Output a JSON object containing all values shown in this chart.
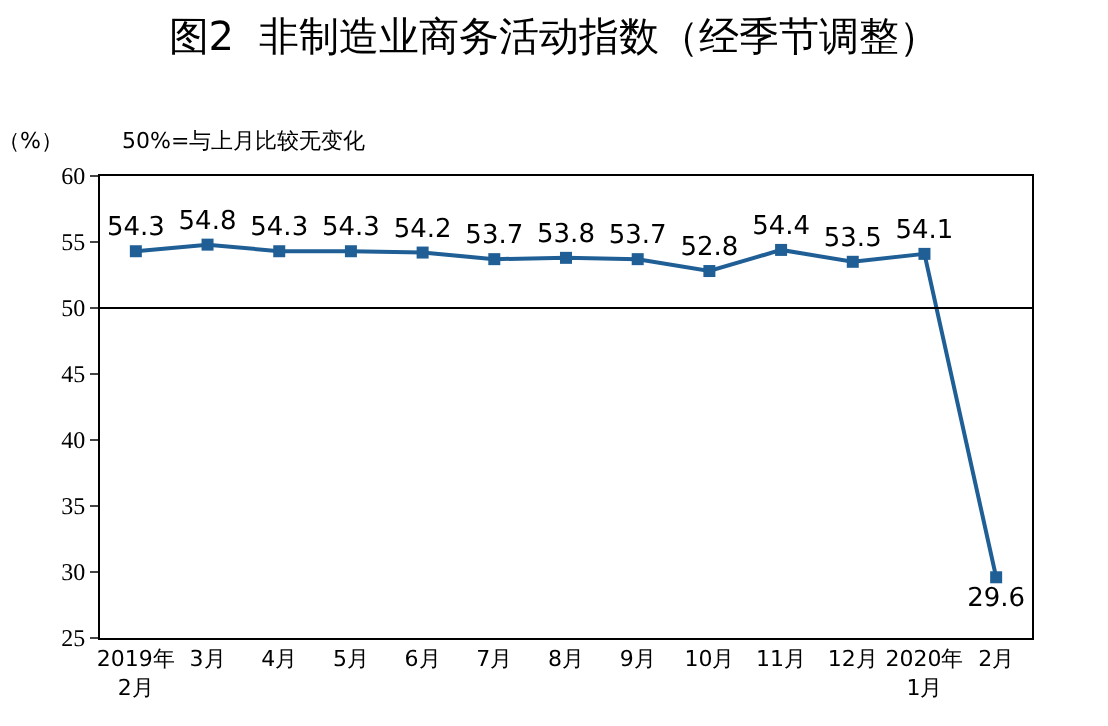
{
  "chart_data": {
    "type": "line",
    "title": "图2  非制造业商务活动指数（经季节调整）",
    "ylabel": "（%）",
    "annotations": [
      "50%=与上月比较无变化"
    ],
    "categories": [
      "2019年\n2月",
      "3月",
      "4月",
      "5月",
      "6月",
      "7月",
      "8月",
      "9月",
      "10月",
      "11月",
      "12月",
      "2020年\n1月",
      "2月"
    ],
    "series": [
      {
        "color": "#1f5f96",
        "values": [
          54.3,
          54.8,
          54.3,
          54.3,
          54.2,
          53.7,
          53.8,
          53.7,
          52.8,
          54.4,
          53.5,
          54.1,
          29.6
        ]
      }
    ],
    "ylim": [
      25,
      60
    ],
    "yticks": [
      25,
      30,
      35,
      40,
      45,
      50,
      55,
      60
    ],
    "ref_lines": [
      {
        "axis": "y",
        "value": 50,
        "color": "#000000"
      }
    ],
    "data_labels": true,
    "marker": "square",
    "line_style": "solid"
  }
}
